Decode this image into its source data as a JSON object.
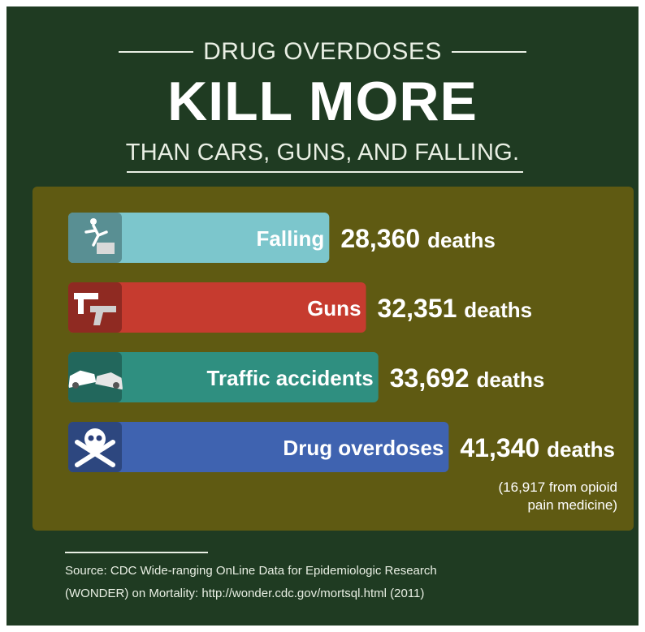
{
  "header": {
    "kicker": "DRUG OVERDOSES",
    "headline": "KILL MORE",
    "subline": "THAN CARS, GUNS, AND FALLING."
  },
  "chart_data": {
    "type": "bar",
    "orientation": "horizontal",
    "categories": [
      "Falling",
      "Guns",
      "Traffic accidents",
      "Drug overdoses"
    ],
    "values": [
      28360,
      32351,
      33692,
      41340
    ],
    "value_labels": [
      "28,360",
      "32,351",
      "33,692",
      "41,340"
    ],
    "unit": "deaths",
    "colors": [
      "#7cc6cc",
      "#c63b2f",
      "#2f8f80",
      "#3f63b0"
    ],
    "icons": [
      "falling-person-icon",
      "guns-icon",
      "car-crash-icon",
      "skull-crossbones-icon"
    ],
    "annotation": "(16,917 from opioid pain medicine)",
    "annotation_lines": [
      "(16,917 from opioid",
      "pain medicine)"
    ]
  },
  "source": {
    "line1": "Source: CDC Wide-ranging OnLine Data for Epidemiologic Research",
    "line2": "(WONDER) on Mortality: http://wonder.cdc.gov/mortsql.html (2011)"
  }
}
